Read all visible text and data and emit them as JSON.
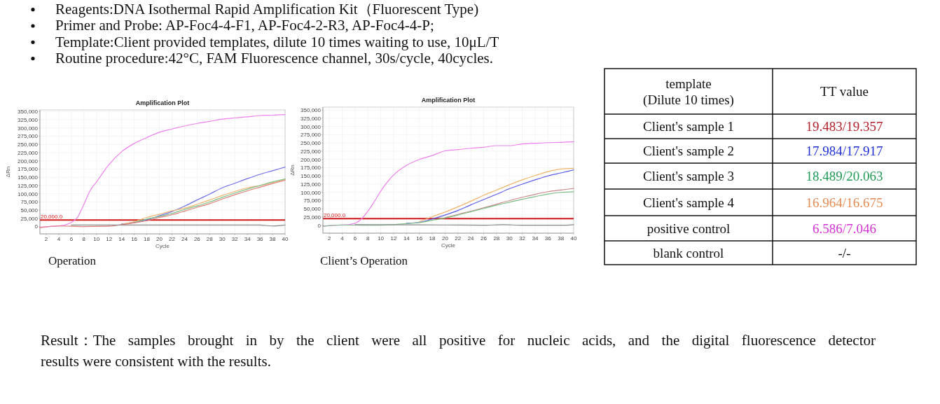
{
  "chart_data": [
    {
      "type": "other",
      "annotations": [
        "Reagents:DNA Isothermal Rapid Amplification Kit（Fluorescent Type)",
        "Primer and Probe: AP-Foc4-4-F1, AP-Foc4-2-R3, AP-Foc4-4-P;",
        "Template:Client provided templates, dilute 10 times waiting to use, 10μL/T",
        "Routine procedure:42°C, FAM Fluorescence channel, 30s/cycle, 40cycles."
      ]
    },
    {
      "type": "line",
      "title": "Amplification Plot",
      "xlabel": "Cycle",
      "ylabel": "ΔRn",
      "xlim": [
        1,
        40
      ],
      "ylim": [
        -22000,
        355000
      ],
      "xticks": [
        2,
        4,
        6,
        8,
        10,
        12,
        14,
        16,
        18,
        20,
        22,
        24,
        26,
        28,
        30,
        32,
        34,
        36,
        38,
        40
      ],
      "yticks": [
        {
          "value": 350000,
          "label": "350,000"
        },
        {
          "value": 325000,
          "label": "325,000"
        },
        {
          "value": 300000,
          "label": "300,000"
        },
        {
          "value": 275000,
          "label": "275,000"
        },
        {
          "value": 250000,
          "label": "250,000"
        },
        {
          "value": 225000,
          "label": "225,000"
        },
        {
          "value": 200000,
          "label": "200,000"
        },
        {
          "value": 175000,
          "label": "175,000"
        },
        {
          "value": 150000,
          "label": "150,000"
        },
        {
          "value": 125000,
          "label": "125,000"
        },
        {
          "value": 100000,
          "label": "100,000"
        },
        {
          "value": 75000,
          "label": "75,000"
        },
        {
          "value": 50000,
          "label": "50,000"
        },
        {
          "value": 25000,
          "label": "25,000"
        },
        0
      ],
      "grid": true,
      "ref_lines": [
        {
          "axis": "y",
          "value": 20000,
          "label": "20,000.0",
          "color": "#d01818"
        }
      ],
      "annotations": [
        "Operation"
      ],
      "series": [
        {
          "color": "#ee80ee",
          "x": [
            1,
            3,
            5,
            6,
            7,
            8,
            9,
            10,
            12,
            14,
            16,
            18,
            20,
            22,
            24,
            26,
            28,
            30,
            32,
            34,
            36,
            38,
            40
          ],
          "values": [
            -2000,
            1000,
            5000,
            13000,
            29000,
            68000,
            110000,
            136000,
            189000,
            228000,
            253000,
            271000,
            287000,
            297000,
            306000,
            314000,
            320000,
            327000,
            331000,
            334000,
            338000,
            339000,
            341000
          ]
        },
        {
          "color": "#6e6ee8",
          "x": [
            14,
            16,
            18,
            20,
            22,
            24,
            26,
            28,
            30,
            32,
            34,
            36,
            38,
            40
          ],
          "values": [
            8000,
            13000,
            21000,
            33000,
            46000,
            62000,
            81000,
            99000,
            118000,
            132000,
            146000,
            159000,
            170000,
            181000
          ]
        },
        {
          "color": "#f2b46e",
          "x": [
            14,
            16,
            18,
            20,
            22,
            24,
            26,
            28,
            30,
            32,
            34,
            36,
            38,
            40
          ],
          "values": [
            7000,
            15000,
            28000,
            38000,
            48000,
            56000,
            68000,
            81000,
            95000,
            107000,
            118000,
            125000,
            134000,
            143000
          ]
        },
        {
          "color": "#7cbf88",
          "x": [
            16,
            18,
            20,
            22,
            24,
            26,
            28,
            30,
            32,
            34,
            36,
            38,
            40
          ],
          "values": [
            12000,
            23000,
            31000,
            40000,
            52000,
            63000,
            75000,
            89000,
            102000,
            114000,
            125000,
            136000,
            145000
          ]
        },
        {
          "color": "#de7c78",
          "x": [
            1,
            4,
            8,
            12,
            14,
            16,
            18,
            20,
            22,
            24,
            26,
            28,
            30,
            32,
            34,
            36,
            38,
            40
          ],
          "values": [
            -3000,
            2000,
            0,
            1000,
            6000,
            11000,
            18000,
            28000,
            36000,
            47000,
            59000,
            70000,
            84000,
            97000,
            109000,
            120000,
            131000,
            141000
          ]
        },
        {
          "color": "#888888",
          "x": [
            6,
            20,
            30,
            36,
            38,
            40
          ],
          "values": [
            5000,
            5000,
            5000,
            5000,
            2000,
            5000
          ]
        }
      ]
    },
    {
      "type": "line",
      "title": "Amplification Plot",
      "xlabel": "Cycle",
      "ylabel": "ΔRn",
      "xlim": [
        1,
        40
      ],
      "ylim": [
        -24000,
        359000
      ],
      "xticks": [
        2,
        4,
        6,
        8,
        10,
        12,
        14,
        16,
        18,
        20,
        22,
        24,
        26,
        28,
        30,
        32,
        34,
        36,
        38,
        40
      ],
      "yticks": [
        {
          "value": 350000,
          "label": "350,000"
        },
        {
          "value": 325000,
          "label": "325,000"
        },
        {
          "value": 300000,
          "label": "300,000"
        },
        {
          "value": 275000,
          "label": "275,000"
        },
        {
          "value": 250000,
          "label": "250,000"
        },
        {
          "value": 225000,
          "label": "225,000"
        },
        {
          "value": 200000,
          "label": "200,000"
        },
        {
          "value": 175000,
          "label": "175,000"
        },
        {
          "value": 150000,
          "label": "150,000"
        },
        {
          "value": 125000,
          "label": "125,000"
        },
        {
          "value": 100000,
          "label": "100,000"
        },
        {
          "value": 75000,
          "label": "75,000"
        },
        {
          "value": 50000,
          "label": "50,000"
        },
        {
          "value": 25000,
          "label": "25,000"
        },
        0
      ],
      "grid": true,
      "ref_lines": [
        {
          "axis": "y",
          "value": 20000,
          "label": "20,000.0",
          "color": "#d01818"
        }
      ],
      "annotations": [
        "Client’s Operation"
      ],
      "series": [
        {
          "color": "#ee80ee",
          "x": [
            1,
            3,
            5,
            6,
            7,
            8,
            9,
            10,
            12,
            14,
            16,
            18,
            20,
            22,
            24,
            26,
            28,
            30,
            32,
            34,
            36,
            38,
            40
          ],
          "values": [
            -3000,
            0,
            2000,
            6000,
            19000,
            43000,
            72000,
            104000,
            153000,
            182000,
            200000,
            212000,
            226000,
            230000,
            234000,
            237000,
            242000,
            242000,
            247000,
            249000,
            251000,
            252000,
            254000
          ]
        },
        {
          "color": "#f2b46e",
          "x": [
            16,
            18,
            20,
            22,
            24,
            26,
            28,
            30,
            32,
            34,
            36,
            38,
            40
          ],
          "values": [
            11000,
            26000,
            40000,
            56000,
            73000,
            91000,
            107000,
            123000,
            138000,
            151000,
            163000,
            171000,
            173000
          ]
        },
        {
          "color": "#5a5ae6",
          "x": [
            14,
            16,
            18,
            20,
            22,
            24,
            26,
            28,
            30,
            32,
            34,
            36,
            38,
            40
          ],
          "values": [
            6000,
            9000,
            19000,
            31000,
            45000,
            62000,
            78000,
            94000,
            111000,
            125000,
            138000,
            150000,
            159000,
            168000
          ]
        },
        {
          "color": "#c98a8a",
          "x": [
            20,
            22,
            24,
            26,
            28,
            30,
            32,
            34,
            36,
            38,
            40
          ],
          "values": [
            23000,
            33000,
            43000,
            53000,
            64000,
            75000,
            85000,
            94000,
            102000,
            107000,
            112000
          ]
        },
        {
          "color": "#7cbf88",
          "x": [
            1,
            4,
            8,
            12,
            14,
            16,
            18,
            20,
            22,
            24,
            26,
            28,
            30,
            32,
            34,
            36,
            38,
            40
          ],
          "values": [
            -3000,
            1000,
            0,
            2000,
            5000,
            8000,
            15000,
            22000,
            31000,
            41000,
            51000,
            61000,
            70000,
            79000,
            87000,
            95000,
            100000,
            102000
          ]
        },
        {
          "color": "#888888",
          "x": [
            6,
            20,
            26,
            29,
            32,
            38,
            40
          ],
          "values": [
            2000,
            1000,
            0,
            2000,
            0,
            0,
            2000
          ]
        }
      ]
    },
    {
      "type": "other",
      "categories": [
        "template\n(Dilute 10 times)",
        "TT value"
      ],
      "y_categories": [
        "Client's sample  1",
        "Client's sample  2",
        "Client's sample  3",
        "Client's sample  4",
        "positive control",
        "blank control"
      ],
      "cell_labels": [
        [
          "19.483/19.357"
        ],
        [
          "17.984/17.917"
        ],
        [
          "18.489/20.063"
        ],
        [
          "16.964/16.675"
        ],
        [
          "6.586/7.046"
        ],
        [
          "-/-"
        ]
      ],
      "colors": [
        "#b3202a",
        "#1c2fd6",
        "#1f9a55",
        "#e48c55",
        "#d431d4",
        "#000000"
      ]
    },
    {
      "type": "other",
      "annotations": [
        "Result：The samples brought in by the client were all positive for nucleic acids, and the digital fluorescence detector results were consistent with the results."
      ]
    }
  ]
}
